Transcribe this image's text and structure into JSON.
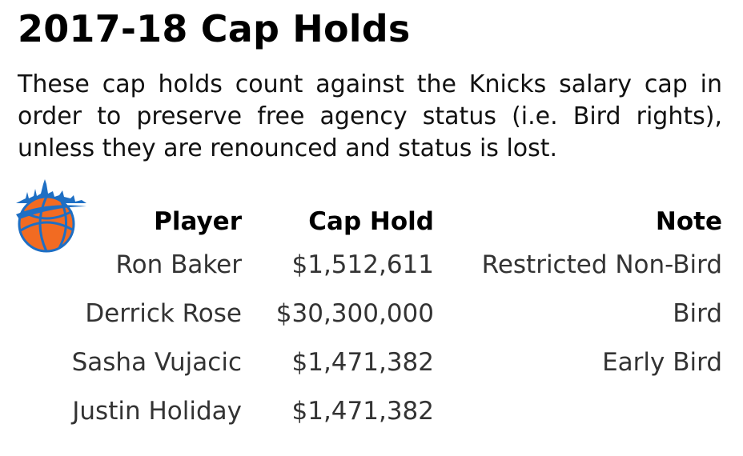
{
  "title": "2017-18 Cap Holds",
  "description": "These cap holds count against the Knicks salary cap in order to preserve free agency status (i.e. Bird rights), unless they are renounced and status is lost.",
  "logo": {
    "icon": "knicks-basketball-skyline-logo",
    "colors": {
      "ball": "#F26B22",
      "outline": "#1E6FC4"
    }
  },
  "table": {
    "headers": {
      "player": "Player",
      "cap_hold": "Cap Hold",
      "note": "Note"
    },
    "rows": [
      {
        "player": "Ron Baker",
        "cap_hold": "$1,512,611",
        "note": "Restricted Non-Bird"
      },
      {
        "player": "Derrick Rose",
        "cap_hold": "$30,300,000",
        "note": "Bird"
      },
      {
        "player": "Sasha Vujacic",
        "cap_hold": "$1,471,382",
        "note": "Early Bird"
      },
      {
        "player": "Justin Holiday",
        "cap_hold": "$1,471,382",
        "note": ""
      }
    ]
  }
}
